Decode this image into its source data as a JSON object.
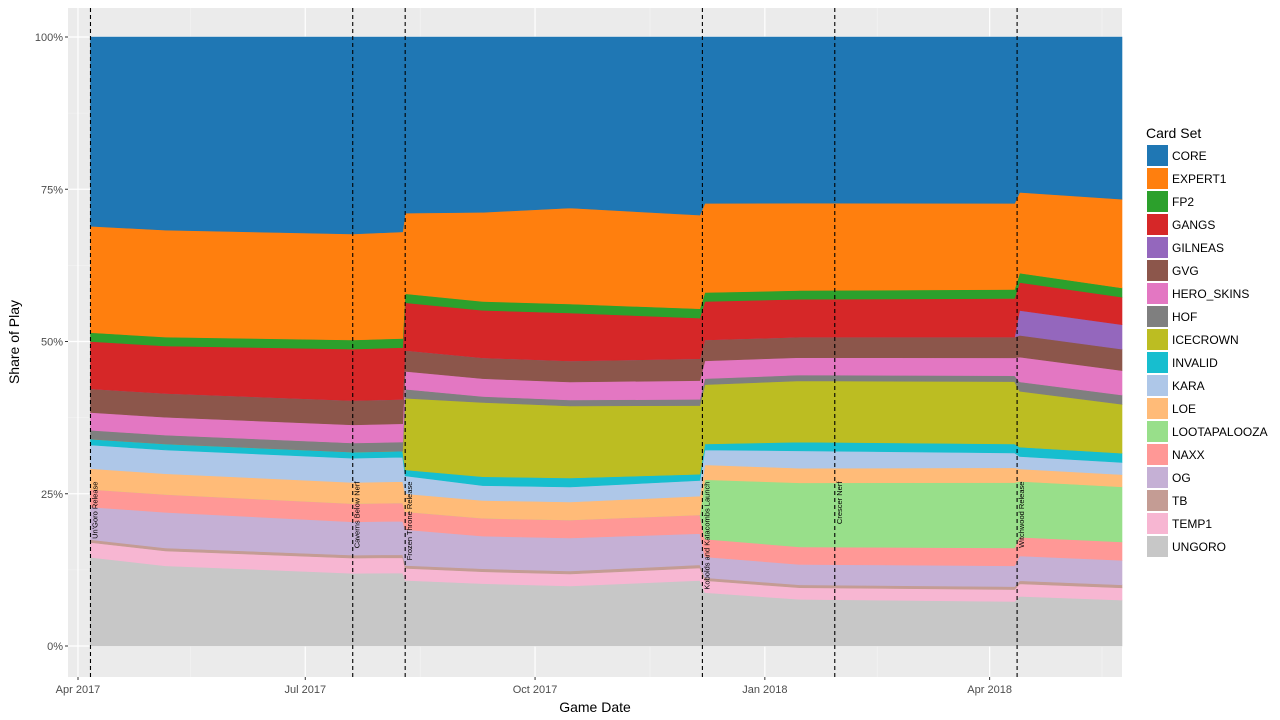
{
  "chart_data": {
    "type": "area",
    "stacked": true,
    "normalized": true,
    "title": "",
    "xlabel": "Game Date",
    "ylabel": "Share of Play",
    "x_ticks": [
      "Apr 2017",
      "Jul 2017",
      "Oct 2017",
      "Jan 2018",
      "Apr 2018"
    ],
    "x_range": [
      "2017-03-28",
      "2018-05-24"
    ],
    "y_ticks": [
      "0%",
      "25%",
      "50%",
      "75%",
      "100%"
    ],
    "ylim": [
      0,
      1
    ],
    "grid": true,
    "legend_title": "Card Set",
    "legend_position": "right",
    "annotations": [
      {
        "date": "2017-04-06",
        "label": "Un'Goro Release"
      },
      {
        "date": "2017-07-20",
        "label": "Caverns Below Nerf"
      },
      {
        "date": "2017-08-10",
        "label": "Frozen Throne Release"
      },
      {
        "date": "2017-12-07",
        "label": "Kobolds and Katacombs Launch"
      },
      {
        "date": "2018-01-29",
        "label": "Crescer Nerf"
      },
      {
        "date": "2018-04-12",
        "label": "Witchwood Release"
      }
    ],
    "dates": [
      "2017-04-06",
      "2017-05-06",
      "2017-07-20",
      "2017-08-09",
      "2017-08-10",
      "2017-09-10",
      "2017-10-15",
      "2017-12-06",
      "2017-12-08",
      "2018-01-15",
      "2018-04-11",
      "2018-04-13",
      "2018-05-24"
    ],
    "series_order": [
      "UNGORO",
      "TEMP1",
      "TB",
      "OG",
      "NAXX",
      "LOOTAPALOOZA",
      "LOE",
      "KARA",
      "INVALID",
      "ICECROWN",
      "HOF",
      "HERO_SKINS",
      "GVG",
      "GILNEAS",
      "GANGS",
      "FP2",
      "EXPERT1",
      "CORE"
    ],
    "series": [
      {
        "name": "CORE",
        "color": "#1f77b4",
        "values": [
          0.32,
          0.325,
          0.325,
          0.32,
          0.295,
          0.295,
          0.285,
          0.285,
          0.28,
          0.285,
          0.28,
          0.25,
          0.265
        ]
      },
      {
        "name": "EXPERT1",
        "color": "#ff7f0e",
        "values": [
          0.18,
          0.18,
          0.175,
          0.175,
          0.135,
          0.15,
          0.16,
          0.15,
          0.15,
          0.15,
          0.145,
          0.13,
          0.145
        ]
      },
      {
        "name": "FP2",
        "color": "#2ca02c",
        "values": [
          0.015,
          0.015,
          0.015,
          0.015,
          0.015,
          0.015,
          0.015,
          0.015,
          0.015,
          0.015,
          0.015,
          0.015,
          0.015
        ]
      },
      {
        "name": "GANGS",
        "color": "#d62728",
        "values": [
          0.08,
          0.08,
          0.085,
          0.085,
          0.08,
          0.08,
          0.08,
          0.065,
          0.065,
          0.065,
          0.065,
          0.045,
          0.045
        ]
      },
      {
        "name": "GILNEAS",
        "color": "#9467bd",
        "values": [
          0,
          0,
          0,
          0,
          0,
          0,
          0,
          0,
          0,
          0,
          0,
          0.04,
          0.04
        ]
      },
      {
        "name": "GVG",
        "color": "#8c564b",
        "values": [
          0.04,
          0.04,
          0.04,
          0.04,
          0.035,
          0.035,
          0.035,
          0.035,
          0.035,
          0.035,
          0.035,
          0.035,
          0.035
        ]
      },
      {
        "name": "HERO_SKINS",
        "color": "#e377c2",
        "values": [
          0.03,
          0.03,
          0.03,
          0.03,
          0.03,
          0.03,
          0.03,
          0.03,
          0.03,
          0.03,
          0.03,
          0.04,
          0.04
        ]
      },
      {
        "name": "HOF",
        "color": "#7f7f7f",
        "values": [
          0.015,
          0.015,
          0.015,
          0.015,
          0.015,
          0.01,
          0.01,
          0.01,
          0.01,
          0.01,
          0.01,
          0.015,
          0.015
        ]
      },
      {
        "name": "ICECROWN",
        "color": "#bcbd22",
        "values": [
          0,
          0,
          0,
          0,
          0.12,
          0.125,
          0.12,
          0.11,
          0.1,
          0.105,
          0.105,
          0.09,
          0.08
        ]
      },
      {
        "name": "INVALID",
        "color": "#17becf",
        "values": [
          0.01,
          0.01,
          0.01,
          0.01,
          0.01,
          0.015,
          0.015,
          0.01,
          0.01,
          0.015,
          0.015,
          0.015,
          0.015
        ]
      },
      {
        "name": "KARA",
        "color": "#aec7e8",
        "values": [
          0.04,
          0.04,
          0.04,
          0.04,
          0.03,
          0.025,
          0.025,
          0.025,
          0.025,
          0.03,
          0.025,
          0.02,
          0.02
        ]
      },
      {
        "name": "LOE",
        "color": "#ffbb78",
        "values": [
          0.035,
          0.035,
          0.035,
          0.035,
          0.03,
          0.03,
          0.03,
          0.03,
          0.025,
          0.025,
          0.025,
          0.02,
          0.02
        ]
      },
      {
        "name": "LOOTAPALOOZA",
        "color": "#98df8a",
        "values": [
          0,
          0,
          0,
          0,
          0,
          0,
          0,
          0,
          0.1,
          0.11,
          0.11,
          0.09,
          0.09
        ]
      },
      {
        "name": "NAXX",
        "color": "#ff9896",
        "values": [
          0.03,
          0.03,
          0.03,
          0.03,
          0.03,
          0.03,
          0.03,
          0.03,
          0.03,
          0.03,
          0.03,
          0.03,
          0.03
        ]
      },
      {
        "name": "OG",
        "color": "#c5b0d5",
        "values": [
          0.055,
          0.06,
          0.055,
          0.055,
          0.06,
          0.055,
          0.055,
          0.05,
          0.035,
          0.035,
          0.035,
          0.04,
          0.04
        ]
      },
      {
        "name": "TB",
        "color": "#c49c94",
        "values": [
          0.005,
          0.005,
          0.005,
          0.005,
          0.005,
          0.005,
          0.005,
          0.005,
          0.005,
          0.005,
          0.005,
          0.005,
          0.005
        ]
      },
      {
        "name": "TEMP1",
        "color": "#f7b6d2",
        "values": [
          0.025,
          0.025,
          0.025,
          0.025,
          0.02,
          0.02,
          0.02,
          0.02,
          0.02,
          0.02,
          0.02,
          0.02,
          0.02
        ]
      },
      {
        "name": "UNGORO",
        "color": "#c7c7c7",
        "values": [
          0.15,
          0.135,
          0.12,
          0.12,
          0.11,
          0.105,
          0.1,
          0.105,
          0.09,
          0.08,
          0.075,
          0.08,
          0.075
        ]
      }
    ]
  }
}
